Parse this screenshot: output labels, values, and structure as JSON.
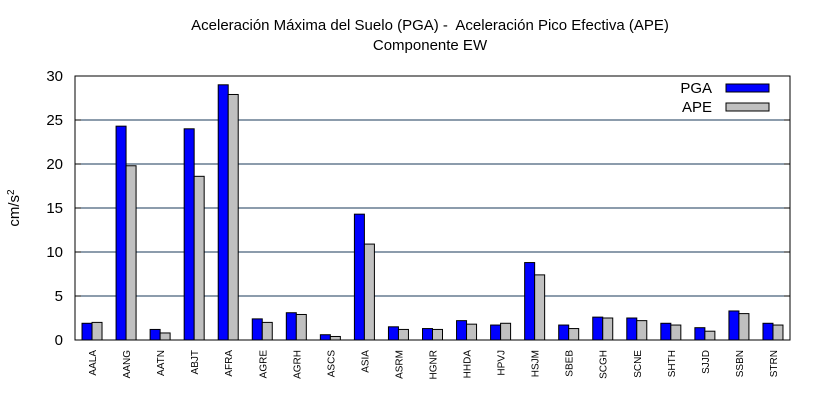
{
  "chart_data": {
    "type": "bar",
    "title": "Aceleración Máxima del Suelo (PGA) -  Aceleración Pico Efectiva (APE)",
    "subtitle": "Componente EW",
    "xlabel": "",
    "ylabel": "cm/s",
    "ylabel_superscript": "2",
    "ylim": [
      0,
      30
    ],
    "yticks": [
      "0",
      "5",
      "10",
      "15",
      "20",
      "25",
      "30"
    ],
    "grid": true,
    "legend_position": "top-right",
    "categories": [
      "AALA",
      "AANG",
      "AATN",
      "ABJT",
      "AFRA",
      "AGRE",
      "AGRH",
      "ASCS",
      "ASIA",
      "ASRM",
      "HGNR",
      "HHDA",
      "HPVJ",
      "HSJM",
      "SBEB",
      "SCGH",
      "SCNE",
      "SHTH",
      "SJJD",
      "SSBN",
      "STRN"
    ],
    "series": [
      {
        "name": "PGA",
        "color": "#0000ff",
        "values": [
          1.9,
          24.3,
          1.2,
          24.0,
          29.0,
          2.4,
          3.1,
          0.6,
          14.3,
          1.5,
          1.3,
          2.2,
          1.7,
          8.8,
          1.7,
          2.6,
          2.5,
          1.9,
          1.4,
          3.3,
          1.9
        ]
      },
      {
        "name": "APE",
        "color": "#c0c0c0",
        "values": [
          2.0,
          19.8,
          0.8,
          18.6,
          27.9,
          2.0,
          2.9,
          0.4,
          10.9,
          1.2,
          1.2,
          1.8,
          1.9,
          7.4,
          1.3,
          2.5,
          2.2,
          1.7,
          1.0,
          3.0,
          1.7
        ]
      }
    ]
  }
}
